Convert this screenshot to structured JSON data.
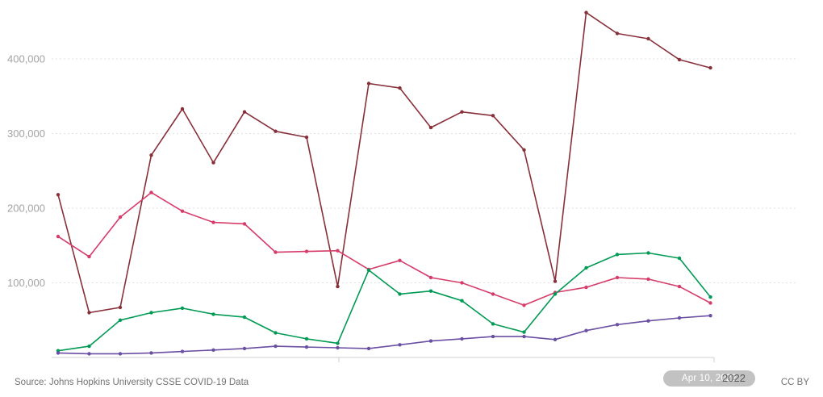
{
  "chart_data": {
    "type": "line",
    "title": "",
    "xlabel": "",
    "ylabel": "",
    "ylim": [
      0,
      470000
    ],
    "grid": "horizontal-dashed",
    "legend": "none",
    "x": [
      1,
      2,
      3,
      4,
      5,
      6,
      7,
      8,
      9,
      10,
      11,
      12,
      13,
      14,
      15,
      16,
      17,
      18,
      19,
      20,
      21,
      22
    ],
    "yticks": [
      {
        "value": 100000,
        "label": "100,000"
      },
      {
        "value": 200000,
        "label": "200,000"
      },
      {
        "value": 300000,
        "label": "300,000"
      },
      {
        "value": 400000,
        "label": "400,000"
      }
    ],
    "x_axis_tick_labels": [
      "2022"
    ],
    "series": [
      {
        "name": "dark-red",
        "color": "#883039",
        "values": [
          218000,
          60000,
          67000,
          271000,
          333000,
          261000,
          329000,
          303000,
          295000,
          95000,
          367000,
          361000,
          308000,
          329000,
          324000,
          278000,
          102000,
          462000,
          434000,
          427000,
          399000,
          388000
        ]
      },
      {
        "name": "pink",
        "color": "#d63c6a",
        "values": [
          162000,
          135000,
          188000,
          221000,
          196000,
          181000,
          179000,
          141000,
          142000,
          143000,
          118000,
          130000,
          107000,
          100000,
          85000,
          70000,
          87000,
          94000,
          107000,
          105000,
          95000,
          73000
        ]
      },
      {
        "name": "green",
        "color": "#009a54",
        "values": [
          9000,
          15000,
          50000,
          60000,
          66000,
          58000,
          54000,
          33000,
          25000,
          19000,
          117000,
          85000,
          89000,
          76000,
          45000,
          34000,
          85000,
          120000,
          138000,
          140000,
          133000,
          81000
        ]
      },
      {
        "name": "purple",
        "color": "#6a4fa3",
        "values": [
          6000,
          5000,
          5000,
          6000,
          8000,
          10000,
          12000,
          15000,
          14000,
          13000,
          12000,
          17000,
          22000,
          25000,
          28000,
          28000,
          24000,
          36000,
          44000,
          49000,
          53000,
          56000
        ]
      }
    ]
  },
  "timeline": {
    "badge_label": "Apr 10, 2022",
    "end_year_label": "2022"
  },
  "footer": {
    "source": "Source: Johns Hopkins University CSSE COVID-19 Data",
    "license": "CC BY"
  }
}
